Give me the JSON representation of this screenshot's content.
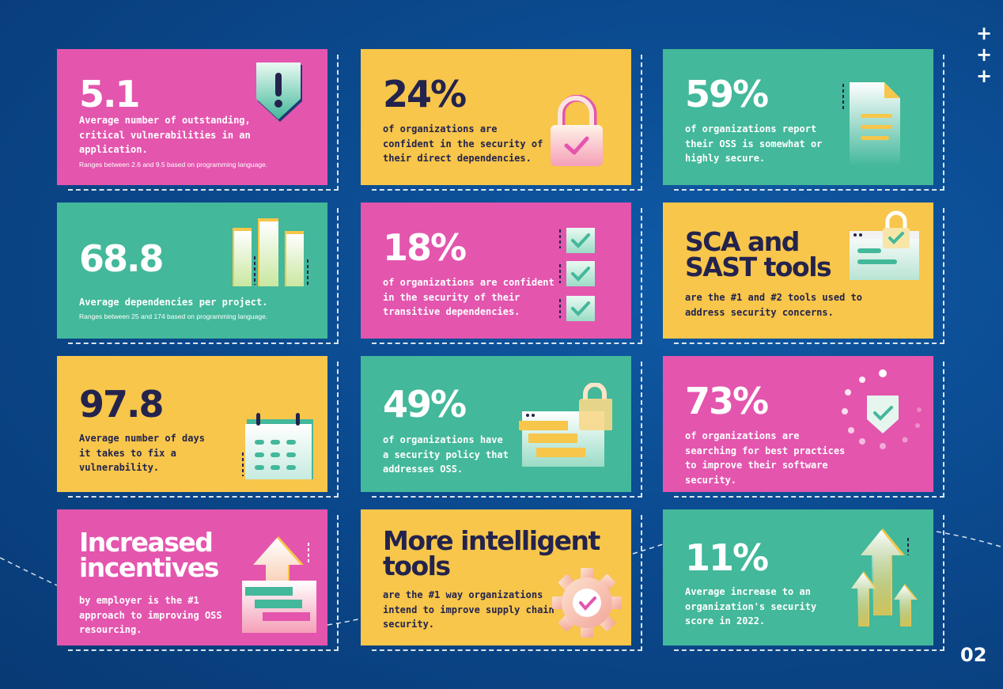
{
  "colors": {
    "pink": "#e455ae",
    "yellow": "#f7c64a",
    "green": "#43b89a",
    "dark_text": "#23234d",
    "background": "#0b4a8f"
  },
  "cards": [
    {
      "stat": "5.1",
      "description": "Average number of outstanding, critical vulnerabilities in an application.",
      "note": "Ranges between 2.6 and 9.5 based on programming language.",
      "icon": "shield-alert-icon"
    },
    {
      "stat": "24%",
      "description": "of organizations are confident in the security of their direct dependencies.",
      "icon": "padlock-check-icon"
    },
    {
      "stat": "59%",
      "description": "of organizations report their OSS is somewhat or highly secure.",
      "icon": "document-icon"
    },
    {
      "stat": "68.8",
      "description": "Average dependencies per project.",
      "note": "Ranges between 25 and 174 based on programming language.",
      "icon": "bar-chart-icon"
    },
    {
      "stat": "18%",
      "description": "of organizations are confident in the security of their transitive dependencies.",
      "icon": "checkbox-list-icon"
    },
    {
      "stat": "SCA and SAST tools",
      "description": "are the #1 and #2 tools used to address security concerns.",
      "icon": "browser-lock-icon"
    },
    {
      "stat": "97.8",
      "description": "Average number of days it takes to fix a vulnerability.",
      "icon": "calendar-icon"
    },
    {
      "stat": "49%",
      "description": "of organizations have a security policy that addresses OSS.",
      "icon": "policy-window-lock-icon"
    },
    {
      "stat": "73%",
      "description": "of organizations are searching for best practices to improve their software security.",
      "icon": "shield-loading-icon"
    },
    {
      "stat": "Increased incentives",
      "description": "by employer is the #1 approach to improving OSS resourcing.",
      "icon": "arrow-window-icon"
    },
    {
      "stat": "More intelligent tools",
      "description": "are the #1 way organizations intend to improve supply chain security.",
      "icon": "gear-check-icon"
    },
    {
      "stat": "11%",
      "description": "Average increase to an organization's security score in 2022.",
      "icon": "up-arrows-icon"
    }
  ],
  "decor": {
    "plus_icon": "plus-icon"
  },
  "page_number": "02"
}
